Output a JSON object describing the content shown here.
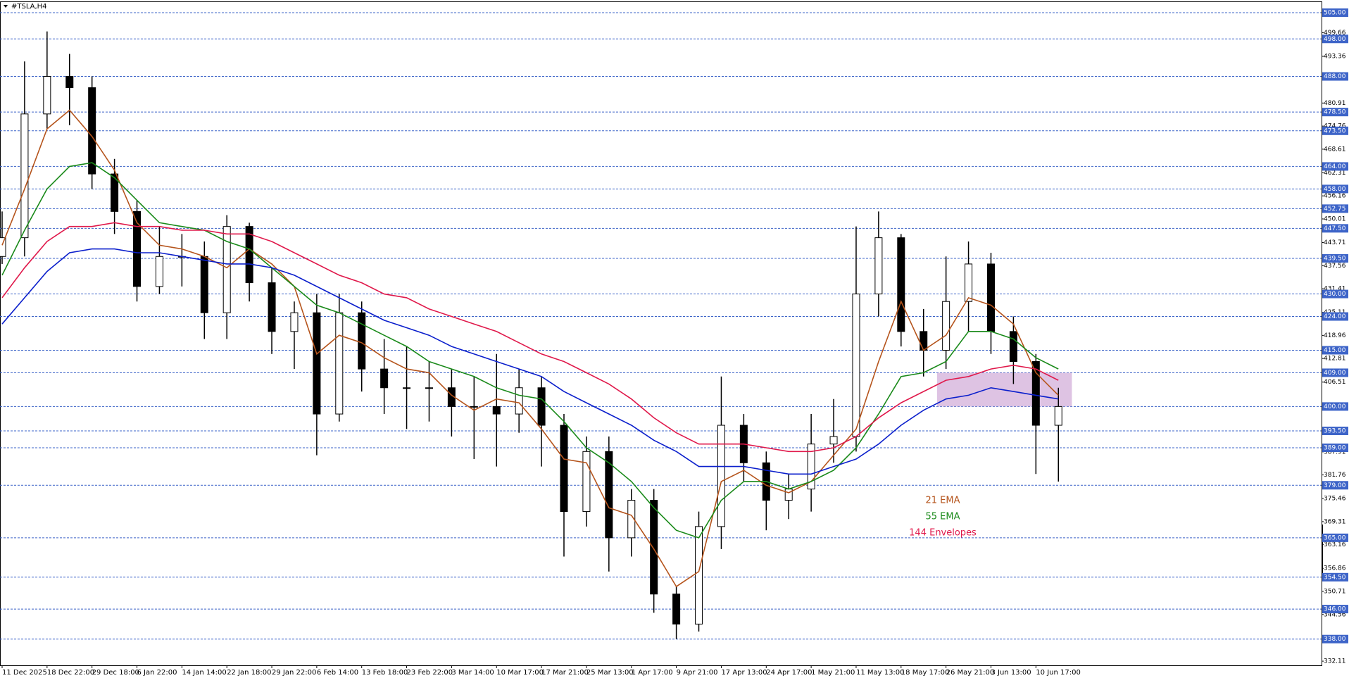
{
  "chart_data": {
    "type": "candlestick",
    "title": "#TSLA,H4",
    "categories": [
      "11 Dec 2025",
      null,
      "18 Dec 22:00",
      null,
      "29 Dec 18:00",
      null,
      "6 Jan 22:00",
      null,
      "14 Jan 14:00",
      null,
      "22 Jan 18:00",
      null,
      "29 Jan 22:00",
      null,
      "6 Feb 14:00",
      null,
      "13 Feb 18:00",
      null,
      "23 Feb 22:00",
      null,
      "3 Mar 14:00",
      null,
      "10 Mar 17:00",
      null,
      "17 Mar 21:00",
      null,
      "25 Mar 13:00",
      null,
      "1 Apr 17:00",
      null,
      "9 Apr 21:00",
      null,
      "17 Apr 13:00",
      null,
      "24 Apr 17:00",
      null,
      "1 May 21:00",
      null,
      "11 May 13:00",
      null,
      "18 May 17:00",
      null,
      "26 May 21:00",
      null,
      "3 Jun 13:00",
      null,
      "10 Jun 17:00",
      null
    ],
    "open": [
      440,
      445,
      478,
      488,
      485,
      462,
      452,
      432,
      440,
      440,
      425,
      448,
      433,
      420,
      425,
      398,
      425,
      410,
      405,
      405,
      405,
      400,
      400,
      398,
      405,
      395,
      372,
      388,
      365,
      375,
      350,
      342,
      368,
      395,
      385,
      375,
      378,
      390,
      392,
      430,
      445,
      420,
      415,
      428,
      438,
      420,
      412,
      395
    ],
    "high": [
      452,
      492,
      500,
      494,
      488,
      466,
      455,
      448,
      446,
      444,
      451,
      449,
      437,
      428,
      430,
      430,
      428,
      418,
      416,
      412,
      410,
      408,
      414,
      410,
      408,
      398,
      392,
      392,
      378,
      378,
      352,
      372,
      408,
      398,
      388,
      382,
      398,
      402,
      448,
      452,
      446,
      426,
      440,
      444,
      441,
      424,
      414,
      405
    ],
    "low": [
      438,
      440,
      474,
      475,
      458,
      446,
      428,
      430,
      432,
      418,
      418,
      428,
      414,
      410,
      387,
      396,
      404,
      398,
      394,
      396,
      392,
      386,
      384,
      393,
      384,
      360,
      368,
      356,
      360,
      345,
      338,
      340,
      362,
      380,
      367,
      370,
      372,
      385,
      388,
      424,
      416,
      408,
      410,
      420,
      414,
      406,
      382,
      380
    ],
    "close": [
      445,
      478,
      488,
      485,
      462,
      452,
      432,
      440,
      440,
      425,
      448,
      433,
      420,
      425,
      398,
      425,
      410,
      405,
      405,
      405,
      400,
      400,
      398,
      405,
      395,
      372,
      388,
      365,
      375,
      350,
      342,
      368,
      395,
      385,
      375,
      378,
      390,
      392,
      430,
      445,
      420,
      415,
      428,
      438,
      420,
      412,
      395,
      400
    ],
    "series": [
      {
        "name": "21 EMA",
        "color": "#b5541c",
        "values": [
          443,
          458,
          474,
          479,
          472,
          463,
          449,
          443,
          442,
          440,
          437,
          442,
          438,
          432,
          414,
          419,
          417,
          413,
          410,
          409,
          403,
          399,
          402,
          401,
          394,
          386,
          385,
          373,
          371,
          362,
          352,
          356,
          380,
          383,
          379,
          377,
          380,
          387,
          394,
          412,
          428,
          415,
          419,
          429,
          427,
          422,
          409,
          403
        ]
      },
      {
        "name": "55 EMA",
        "color": "#1a8a1a",
        "values": [
          435,
          447,
          458,
          464,
          465,
          461,
          455,
          449,
          448,
          447,
          444,
          442,
          437,
          432,
          427,
          425,
          422,
          419,
          416,
          412,
          410,
          408,
          405,
          403,
          402,
          396,
          389,
          385,
          380,
          373,
          367,
          365,
          375,
          380,
          380,
          378,
          380,
          383,
          389,
          398,
          408,
          409,
          412,
          420,
          420,
          418,
          413,
          410
        ]
      },
      {
        "name": "144 Envelopes",
        "color": "#e0194b",
        "values": [
          429,
          437,
          444,
          448,
          448,
          449,
          448,
          448,
          447,
          447,
          446,
          446,
          444,
          441,
          438,
          435,
          433,
          430,
          429,
          426,
          424,
          422,
          420,
          417,
          414,
          412,
          409,
          406,
          402,
          397,
          393,
          390,
          390,
          390,
          389,
          388,
          388,
          389,
          392,
          397,
          401,
          404,
          407,
          408,
          410,
          411,
          410,
          407
        ]
      },
      {
        "color": "#0b1fcc",
        "values": [
          422,
          429,
          436,
          441,
          442,
          442,
          441,
          441,
          440,
          439,
          438,
          438,
          437,
          435,
          432,
          429,
          426,
          423,
          421,
          419,
          416,
          414,
          412,
          410,
          408,
          404,
          401,
          398,
          395,
          391,
          388,
          384,
          384,
          384,
          383,
          382,
          382,
          384,
          386,
          390,
          395,
          399,
          402,
          403,
          405,
          404,
          403,
          402
        ]
      }
    ],
    "zone": {
      "high": 409,
      "low": 400,
      "color": "#c89bd0"
    },
    "levels": [
      {
        "value": 505,
        "label": "505.00"
      },
      {
        "value": 498,
        "label": "498.00"
      },
      {
        "value": 488,
        "label": "488.00"
      },
      {
        "value": 478.5,
        "label": "478.50"
      },
      {
        "value": 473.5,
        "label": "473.50"
      },
      {
        "value": 464,
        "label": "464.00"
      },
      {
        "value": 458,
        "label": "458.00"
      },
      {
        "value": 452.75,
        "label": "452.75"
      },
      {
        "value": 447.5,
        "label": "447.50"
      },
      {
        "value": 439.5,
        "label": "439.50"
      },
      {
        "value": 430,
        "label": "430.00"
      },
      {
        "value": 424,
        "label": "424.00"
      },
      {
        "value": 415,
        "label": "415.00"
      },
      {
        "value": 409,
        "label": "409.00"
      },
      {
        "value": 400,
        "label": "400.00"
      },
      {
        "value": 393.5,
        "label": "393.50"
      },
      {
        "value": 389,
        "label": "389.00"
      },
      {
        "value": 379,
        "label": "379.00"
      },
      {
        "value": 365,
        "label": "365.00"
      },
      {
        "value": 354.5,
        "label": "354.50"
      },
      {
        "value": 346,
        "label": "346.00"
      },
      {
        "value": 338,
        "label": "338.00"
      }
    ],
    "ylim": [
      331,
      508
    ],
    "yticks": [
      499.66,
      493.36,
      480.91,
      474.76,
      468.61,
      462.31,
      456.16,
      450.01,
      443.71,
      437.56,
      431.41,
      425.11,
      418.96,
      412.81,
      406.51,
      387.91,
      381.76,
      375.46,
      369.31,
      363.16,
      356.86,
      350.71,
      344.56,
      332.11
    ],
    "grid": false,
    "level_color": "#3d64c8"
  }
}
